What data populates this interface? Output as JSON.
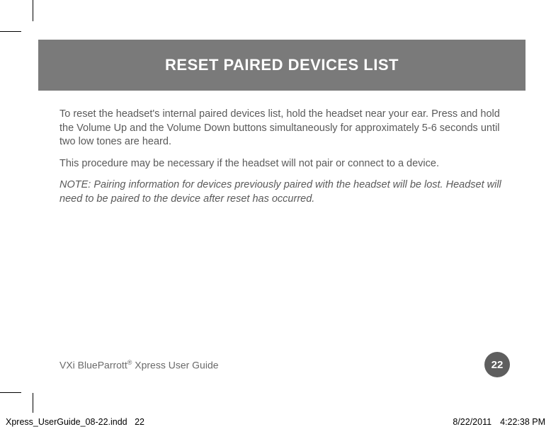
{
  "header": {
    "title": "RESET PAIRED DEVICES LIST",
    "band_color": "#7a7a7a",
    "title_color": "#ffffff",
    "title_fontsize": 22
  },
  "body": {
    "text_color": "#5a5a5a",
    "fontsize": 14.5,
    "paragraphs": [
      "To reset the headset's internal paired devices list, hold the headset near your ear. Press and hold the Volume Up and the Volume Down buttons simultaneously for approximately 5-6 seconds until two low tones are heard.",
      "This procedure may be necessary if the headset will not pair or connect to a device."
    ],
    "note": "NOTE: Pairing information for devices previously paired with the headset will be lost. Headset will need to be paired to the device after reset has occurred."
  },
  "footer": {
    "guide_prefix": "VXi BlueParrott",
    "guide_reg": "®",
    "guide_suffix": " Xpress User Guide",
    "page_number": "22",
    "badge_bg": "#5e5e5e",
    "badge_fg": "#ffffff"
  },
  "slug": {
    "file": "Xpress_UserGuide_08-22.indd",
    "page": "22",
    "date": "8/22/2011",
    "time": "4:22:38 PM"
  }
}
